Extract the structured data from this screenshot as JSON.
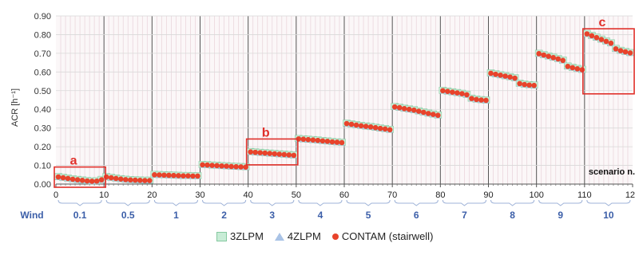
{
  "chart_data": {
    "type": "scatter",
    "ylabel": "ACR [h⁻¹]",
    "xlabel": "scenario n.",
    "ylim": [
      0,
      0.9
    ],
    "xlim": [
      0,
      120
    ],
    "y_ticks": [
      "0.00",
      "0.10",
      "0.20",
      "0.30",
      "0.40",
      "0.50",
      "0.60",
      "0.70",
      "0.80",
      "0.90"
    ],
    "x_ticks": [
      "0",
      "10",
      "20",
      "30",
      "40",
      "50",
      "60",
      "70",
      "80",
      "90",
      "100",
      "110",
      "120"
    ],
    "wind_label": "Wind",
    "wind_values": [
      "0.1",
      "0.5",
      "1",
      "2",
      "3",
      "4",
      "5",
      "6",
      "7",
      "8",
      "9",
      "10"
    ],
    "legend": [
      "3ZLPM",
      "4ZLPM",
      "CONTAM (stairwell)"
    ],
    "colors": {
      "3ZLPM": "#c8ecd6",
      "4ZLPM": "#a9c3e6",
      "CONTAM": "#e8432b",
      "annotation": "#e0302a",
      "wind": "#3b5ea8"
    },
    "annotations": [
      {
        "label": "a",
        "x_range": [
          0,
          10
        ],
        "y_range": [
          0,
          0.07
        ]
      },
      {
        "label": "b",
        "x_range": [
          40,
          50
        ],
        "y_range": [
          0.12,
          0.22
        ]
      },
      {
        "label": "c",
        "x_range": [
          110,
          120
        ],
        "y_range": [
          0.5,
          0.81
        ]
      }
    ],
    "series": [
      {
        "name": "3ZLPM",
        "values": [
          0.04,
          0.036,
          0.032,
          0.028,
          0.025,
          0.022,
          0.019,
          0.017,
          0.018,
          0.025,
          0.04,
          0.036,
          0.032,
          0.029,
          0.026,
          0.024,
          0.023,
          0.022,
          0.021,
          0.021,
          0.052,
          0.051,
          0.05,
          0.049,
          0.048,
          0.047,
          0.046,
          0.046,
          0.045,
          0.045,
          0.105,
          0.104,
          0.102,
          0.101,
          0.099,
          0.098,
          0.096,
          0.095,
          0.094,
          0.093,
          0.174,
          0.172,
          0.17,
          0.168,
          0.166,
          0.164,
          0.162,
          0.16,
          0.158,
          0.156,
          0.244,
          0.242,
          0.24,
          0.238,
          0.236,
          0.233,
          0.231,
          0.228,
          0.226,
          0.224,
          0.326,
          0.322,
          0.318,
          0.314,
          0.311,
          0.308,
          0.304,
          0.3,
          0.297,
          0.293,
          0.415,
          0.411,
          0.406,
          0.402,
          0.398,
          0.392,
          0.386,
          0.38,
          0.375,
          0.37,
          0.502,
          0.498,
          0.494,
          0.49,
          0.486,
          0.48,
          0.46,
          0.455,
          0.452,
          0.45,
          0.595,
          0.59,
          0.585,
          0.58,
          0.575,
          0.569,
          0.54,
          0.535,
          0.532,
          0.53,
          0.7,
          0.693,
          0.686,
          0.679,
          0.672,
          0.664,
          0.632,
          0.625,
          0.619,
          0.614,
          0.806,
          0.796,
          0.786,
          0.776,
          0.766,
          0.756,
          0.726,
          0.716,
          0.71,
          0.704
        ]
      },
      {
        "name": "4ZLPM",
        "values": [
          0.036,
          0.032,
          0.028,
          0.024,
          0.021,
          0.018,
          0.015,
          0.013,
          0.014,
          0.021,
          0.036,
          0.032,
          0.028,
          0.025,
          0.022,
          0.02,
          0.019,
          0.018,
          0.017,
          0.017,
          0.048,
          0.047,
          0.046,
          0.045,
          0.044,
          0.043,
          0.042,
          0.042,
          0.041,
          0.041,
          0.101,
          0.1,
          0.098,
          0.097,
          0.095,
          0.094,
          0.092,
          0.091,
          0.09,
          0.089,
          0.17,
          0.168,
          0.166,
          0.164,
          0.162,
          0.16,
          0.158,
          0.156,
          0.154,
          0.152,
          0.24,
          0.238,
          0.236,
          0.234,
          0.232,
          0.229,
          0.227,
          0.224,
          0.222,
          0.22,
          0.322,
          0.318,
          0.314,
          0.31,
          0.307,
          0.304,
          0.3,
          0.296,
          0.293,
          0.289,
          0.411,
          0.407,
          0.402,
          0.398,
          0.394,
          0.388,
          0.382,
          0.376,
          0.371,
          0.366,
          0.498,
          0.494,
          0.49,
          0.486,
          0.482,
          0.476,
          0.456,
          0.451,
          0.448,
          0.446,
          0.591,
          0.586,
          0.581,
          0.576,
          0.571,
          0.565,
          0.536,
          0.531,
          0.528,
          0.526,
          0.696,
          0.689,
          0.682,
          0.675,
          0.668,
          0.66,
          0.628,
          0.621,
          0.615,
          0.61,
          0.802,
          0.792,
          0.782,
          0.772,
          0.762,
          0.752,
          0.722,
          0.712,
          0.706,
          0.7
        ]
      },
      {
        "name": "CONTAM (stairwell)",
        "values": [
          0.038,
          0.034,
          0.03,
          0.026,
          0.023,
          0.02,
          0.017,
          0.015,
          0.016,
          0.023,
          0.038,
          0.034,
          0.03,
          0.027,
          0.024,
          0.022,
          0.021,
          0.02,
          0.019,
          0.019,
          0.05,
          0.049,
          0.048,
          0.047,
          0.046,
          0.045,
          0.044,
          0.044,
          0.043,
          0.043,
          0.103,
          0.102,
          0.1,
          0.099,
          0.097,
          0.096,
          0.094,
          0.093,
          0.092,
          0.091,
          0.172,
          0.17,
          0.168,
          0.166,
          0.164,
          0.162,
          0.16,
          0.158,
          0.156,
          0.154,
          0.242,
          0.24,
          0.238,
          0.236,
          0.234,
          0.231,
          0.229,
          0.226,
          0.224,
          0.222,
          0.324,
          0.32,
          0.316,
          0.312,
          0.309,
          0.306,
          0.302,
          0.298,
          0.295,
          0.291,
          0.413,
          0.409,
          0.404,
          0.4,
          0.396,
          0.39,
          0.384,
          0.378,
          0.373,
          0.368,
          0.5,
          0.496,
          0.492,
          0.488,
          0.484,
          0.478,
          0.458,
          0.453,
          0.45,
          0.448,
          0.593,
          0.588,
          0.583,
          0.578,
          0.573,
          0.567,
          0.538,
          0.533,
          0.53,
          0.528,
          0.698,
          0.691,
          0.684,
          0.677,
          0.67,
          0.662,
          0.63,
          0.623,
          0.617,
          0.612,
          0.804,
          0.794,
          0.784,
          0.774,
          0.764,
          0.754,
          0.724,
          0.714,
          0.708,
          0.702
        ]
      }
    ]
  }
}
